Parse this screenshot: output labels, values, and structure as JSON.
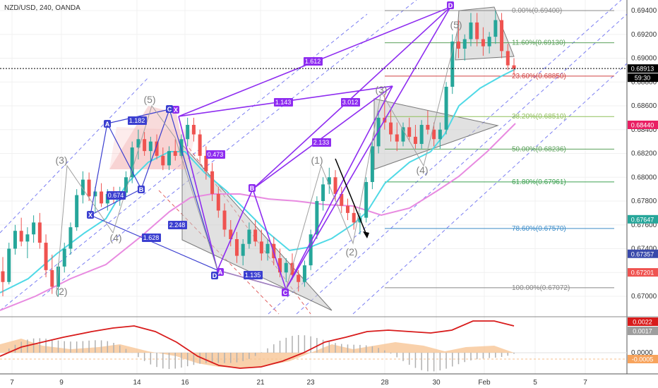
{
  "colors": {
    "up": "#26a69a",
    "down": "#ef5350",
    "harmonic_purple": "#8e2cf0",
    "harmonic_blue": "#3b3fd0",
    "ema_fast": "#4fd9e6",
    "ema_slow": "#e88ae0",
    "channel_blue": "#5b5ff0",
    "triangle_fill": "#c8c8c8",
    "fib_label": "#888888",
    "fib_green": "#5aa05a",
    "fib_red": "#d04040",
    "fib_blue": "#3c8cc8",
    "macd_line": "#d81b1b",
    "macd_hist_pos": "#b0b0b0",
    "macd_area": "#f7c28f"
  },
  "chart_data": {
    "type": "candlestick",
    "title": "NZD/USD, 240, OANDA",
    "price_range": [
      0.669,
      0.695
    ],
    "x_tick_labels": [
      "7",
      "9",
      "14",
      "16",
      "21",
      "23",
      "28",
      "30",
      "Feb",
      "5",
      "7"
    ],
    "y_tick_labels": [
      "0.69400",
      "0.69200",
      "0.69000",
      "0.68800",
      "0.68600",
      "0.68400",
      "0.68200",
      "0.68000",
      "0.67800",
      "0.67600",
      "0.67400",
      "0.67200",
      "0.67000"
    ],
    "price_tags": [
      {
        "label": "0.68913",
        "color": "#000000"
      },
      {
        "label": "59:30",
        "color": "#000000"
      },
      {
        "label": "0.68440",
        "color": "#e91e63"
      },
      {
        "label": "0.67647",
        "color": "#26a69a"
      },
      {
        "label": "0.67357",
        "color": "#3949ab"
      },
      {
        "label": "0.67201",
        "color": "#ef5350"
      }
    ],
    "fibonacci": [
      {
        "label": "0.00%(0.69400)",
        "level": 0.694,
        "color": "#888888"
      },
      {
        "label": "11.60%(0.69130)",
        "level": 0.6913,
        "color": "#5aa05a"
      },
      {
        "label": "23.60%(0.68850)",
        "level": 0.6885,
        "color": "#d04040"
      },
      {
        "label": "38.20%(0.68510)",
        "level": 0.6851,
        "color": "#8fbf5a"
      },
      {
        "label": "50.00%(0.68236)",
        "level": 0.68236,
        "color": "#5aa05a"
      },
      {
        "label": "61.80%(0.67961)",
        "level": 0.67961,
        "color": "#3ca050"
      },
      {
        "label": "78.60%(0.67570)",
        "level": 0.6757,
        "color": "#3c8cc8"
      },
      {
        "label": "100.00%(0.67072)",
        "level": 0.67072,
        "color": "#888888"
      }
    ],
    "ratio_labels": [
      "1.612",
      "1.143",
      "3.012",
      "2.133",
      "0.473",
      "1.182",
      "0.674",
      "2.248",
      "1.628",
      "1.135"
    ],
    "point_labels": [
      "X",
      "A",
      "B",
      "C",
      "D",
      "X",
      "A",
      "B",
      "C",
      "D"
    ],
    "wave_labels": [
      "(2)",
      "(3)",
      "(4)",
      "(5)",
      "(1)",
      "(2)",
      "(3)",
      "(4)",
      "(5)"
    ],
    "macd": {
      "y_tick_labels": [
        "0.0000"
      ],
      "value_tags": [
        {
          "label": "0.0022",
          "color": "#d81b1b"
        },
        {
          "label": "0.0017",
          "color": "#9e9e9e"
        },
        {
          "label": "-0.0005",
          "color": "#f7a35c"
        }
      ]
    },
    "candles": [
      [
        0.6721,
        0.6733,
        0.67,
        0.6712
      ],
      [
        0.6712,
        0.6745,
        0.671,
        0.674
      ],
      [
        0.674,
        0.676,
        0.6735,
        0.6755
      ],
      [
        0.6755,
        0.6766,
        0.6742,
        0.6746
      ],
      [
        0.6746,
        0.6758,
        0.6732,
        0.6752
      ],
      [
        0.6752,
        0.6768,
        0.6745,
        0.6762
      ],
      [
        0.6762,
        0.677,
        0.674,
        0.6745
      ],
      [
        0.6745,
        0.6752,
        0.6716,
        0.6722
      ],
      [
        0.6722,
        0.6735,
        0.6702,
        0.6708
      ],
      [
        0.6708,
        0.6728,
        0.67,
        0.6725
      ],
      [
        0.6725,
        0.6745,
        0.672,
        0.674
      ],
      [
        0.674,
        0.6762,
        0.6735,
        0.6758
      ],
      [
        0.6758,
        0.679,
        0.6755,
        0.6785
      ],
      [
        0.6785,
        0.6805,
        0.6778,
        0.6798
      ],
      [
        0.6798,
        0.6804,
        0.678,
        0.6784
      ],
      [
        0.6784,
        0.6792,
        0.677,
        0.6788
      ],
      [
        0.6788,
        0.6795,
        0.6775,
        0.6778
      ],
      [
        0.6778,
        0.679,
        0.6772,
        0.6786
      ],
      [
        0.6786,
        0.6792,
        0.6778,
        0.6782
      ],
      [
        0.6782,
        0.6792,
        0.6776,
        0.6787
      ],
      [
        0.6787,
        0.6805,
        0.6783,
        0.68
      ],
      [
        0.68,
        0.683,
        0.6795,
        0.6825
      ],
      [
        0.6825,
        0.684,
        0.6815,
        0.6832
      ],
      [
        0.6832,
        0.6838,
        0.6818,
        0.6822
      ],
      [
        0.6822,
        0.6834,
        0.6812,
        0.683
      ],
      [
        0.683,
        0.6836,
        0.6815,
        0.6818
      ],
      [
        0.6818,
        0.6825,
        0.6806,
        0.681
      ],
      [
        0.681,
        0.6826,
        0.6806,
        0.6822
      ],
      [
        0.6822,
        0.6832,
        0.6814,
        0.6818
      ],
      [
        0.6818,
        0.6836,
        0.6816,
        0.6832
      ],
      [
        0.6832,
        0.685,
        0.6826,
        0.6844
      ],
      [
        0.6844,
        0.685,
        0.683,
        0.6836
      ],
      [
        0.6836,
        0.684,
        0.6812,
        0.6818
      ],
      [
        0.6818,
        0.6826,
        0.6798,
        0.6805
      ],
      [
        0.6805,
        0.6812,
        0.678,
        0.6786
      ],
      [
        0.6786,
        0.6792,
        0.6766,
        0.6772
      ],
      [
        0.6772,
        0.6778,
        0.675,
        0.6756
      ],
      [
        0.6756,
        0.6764,
        0.6742,
        0.6748
      ],
      [
        0.6748,
        0.6754,
        0.6728,
        0.6734
      ],
      [
        0.6734,
        0.6748,
        0.6726,
        0.6744
      ],
      [
        0.6744,
        0.6762,
        0.674,
        0.6756
      ],
      [
        0.6756,
        0.6764,
        0.6742,
        0.6746
      ],
      [
        0.6746,
        0.6756,
        0.673,
        0.6736
      ],
      [
        0.6736,
        0.6748,
        0.673,
        0.6744
      ],
      [
        0.6744,
        0.675,
        0.6726,
        0.6732
      ],
      [
        0.6732,
        0.674,
        0.6716,
        0.672
      ],
      [
        0.672,
        0.6732,
        0.6712,
        0.6728
      ],
      [
        0.6728,
        0.6736,
        0.6714,
        0.6718
      ],
      [
        0.6718,
        0.6722,
        0.6704,
        0.6712
      ],
      [
        0.6712,
        0.673,
        0.6708,
        0.6726
      ],
      [
        0.6726,
        0.6756,
        0.6722,
        0.6752
      ],
      [
        0.6752,
        0.6784,
        0.6748,
        0.678
      ],
      [
        0.678,
        0.68,
        0.6772,
        0.6794
      ],
      [
        0.6794,
        0.6808,
        0.6786,
        0.68
      ],
      [
        0.68,
        0.6806,
        0.678,
        0.6786
      ],
      [
        0.6786,
        0.6792,
        0.677,
        0.6776
      ],
      [
        0.6776,
        0.6782,
        0.6764,
        0.677
      ],
      [
        0.677,
        0.6776,
        0.6756,
        0.6762
      ],
      [
        0.6762,
        0.677,
        0.6752,
        0.6766
      ],
      [
        0.6766,
        0.68,
        0.6762,
        0.6796
      ],
      [
        0.6796,
        0.683,
        0.679,
        0.6826
      ],
      [
        0.6826,
        0.6856,
        0.682,
        0.685
      ],
      [
        0.685,
        0.687,
        0.684,
        0.6846
      ],
      [
        0.6846,
        0.6856,
        0.683,
        0.6836
      ],
      [
        0.6836,
        0.6846,
        0.6822,
        0.683
      ],
      [
        0.683,
        0.6846,
        0.6826,
        0.6842
      ],
      [
        0.6842,
        0.685,
        0.683,
        0.6834
      ],
      [
        0.6834,
        0.6844,
        0.6824,
        0.6828
      ],
      [
        0.6828,
        0.6848,
        0.6824,
        0.6844
      ],
      [
        0.6844,
        0.6856,
        0.6836,
        0.684
      ],
      [
        0.684,
        0.6846,
        0.6826,
        0.6832
      ],
      [
        0.6832,
        0.6846,
        0.6824,
        0.684
      ],
      [
        0.684,
        0.688,
        0.6836,
        0.6876
      ],
      [
        0.6876,
        0.692,
        0.687,
        0.6914
      ],
      [
        0.6914,
        0.6932,
        0.69,
        0.6908
      ],
      [
        0.6908,
        0.692,
        0.6898,
        0.6916
      ],
      [
        0.6916,
        0.6938,
        0.691,
        0.693
      ],
      [
        0.693,
        0.6938,
        0.691,
        0.6916
      ],
      [
        0.6916,
        0.6926,
        0.6902,
        0.691
      ],
      [
        0.691,
        0.6922,
        0.6904,
        0.6918
      ],
      [
        0.6918,
        0.694,
        0.6912,
        0.6932
      ],
      [
        0.6932,
        0.6938,
        0.69,
        0.6906
      ],
      [
        0.6906,
        0.6912,
        0.689,
        0.6894
      ],
      [
        0.6894,
        0.69,
        0.6886,
        0.6891
      ]
    ]
  }
}
